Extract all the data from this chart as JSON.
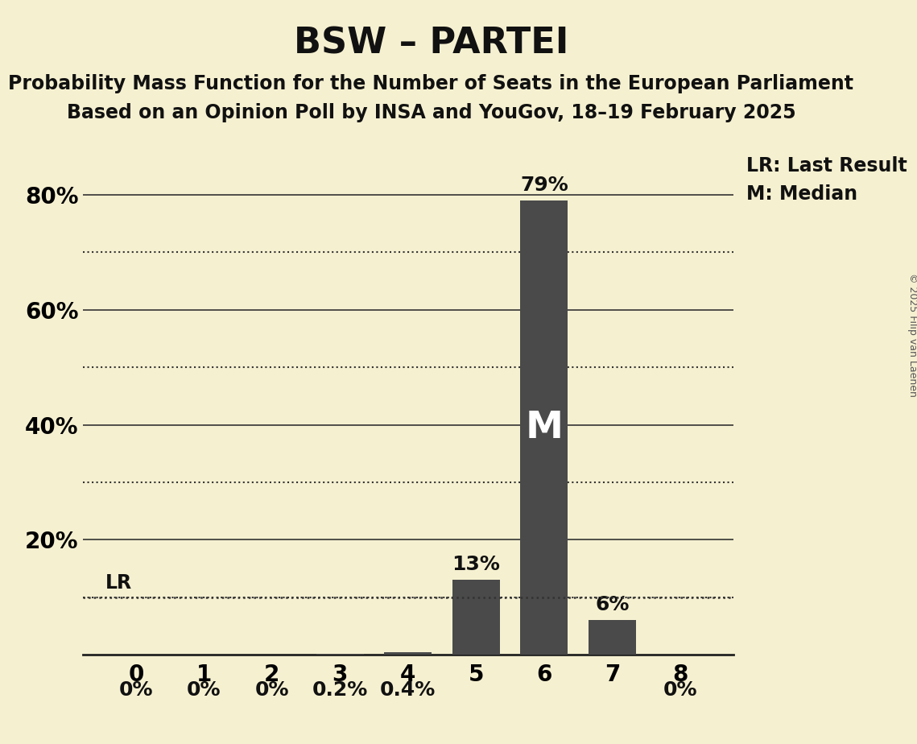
{
  "title": "BSW – PARTEI",
  "subtitle1": "Probability Mass Function for the Number of Seats in the European Parliament",
  "subtitle2": "Based on an Opinion Poll by INSA and YouGov, 18–19 February 2025",
  "copyright": "© 2025 Filip van Laenen",
  "categories": [
    0,
    1,
    2,
    3,
    4,
    5,
    6,
    7,
    8
  ],
  "values": [
    0.0,
    0.0,
    0.0,
    0.2,
    0.4,
    13.0,
    79.0,
    6.0,
    0.0
  ],
  "bar_color": "#4a4a4a",
  "background_color": "#f5f0d0",
  "lr_value": 10.0,
  "median_seat_index": 6,
  "ylim": [
    0,
    88
  ],
  "yticks_solid": [
    20,
    40,
    60,
    80
  ],
  "yticks_dotted": [
    10,
    30,
    50,
    70
  ],
  "ytick_labels_positions": [
    20,
    40,
    60,
    80
  ],
  "ytick_labels_text": [
    "20%",
    "40%",
    "60%",
    "80%"
  ],
  "label_values": [
    "0%",
    "0%",
    "0%",
    "0.2%",
    "0.4%",
    "13%",
    "79%",
    "6%",
    "0%"
  ],
  "title_fontsize": 32,
  "subtitle_fontsize": 17,
  "axis_fontsize": 20,
  "bar_label_fontsize": 18,
  "legend_fontsize": 17,
  "copyright_fontsize": 9
}
